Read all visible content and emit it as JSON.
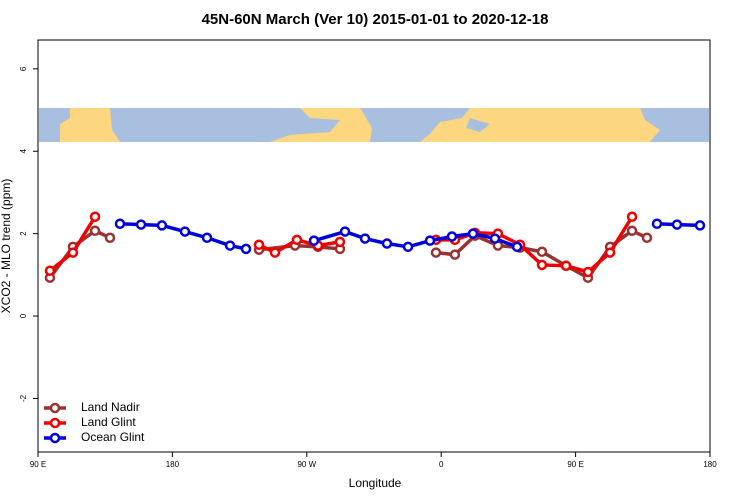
{
  "chart_data": {
    "type": "line",
    "title": "45N-60N March (Ver 10)   2015-01-01 to 2020-12-18",
    "x_label": "Longitude",
    "y_label": "XCO2 - MLO trend (ppm)",
    "xlim": [
      90,
      540
    ],
    "ylim": [
      -3.3,
      6.7
    ],
    "xticks": [
      {
        "value": 90,
        "label": "90 E"
      },
      180,
      {
        "value": 270,
        "label": "90 W"
      },
      {
        "value": 360,
        "label": "0"
      },
      {
        "value": 450,
        "label": "90 E"
      },
      {
        "value": 540,
        "label": "180"
      }
    ],
    "yticks": [
      -2,
      0,
      2,
      4,
      6
    ],
    "legend": "bottom-left",
    "series": [
      {
        "name": "Land Nadir",
        "color": "#993333",
        "x": [
          98.0,
          113.4,
          128.2,
          138.2,
          null,
          238.0,
          262.1,
          277.5,
          292.2,
          null,
          356.5,
          369.2,
          382.6,
          398.0,
          412.8,
          427.5,
          443.6,
          458.3,
          473.1,
          487.8,
          497.8
        ],
        "values": [
          0.93,
          1.68,
          2.07,
          1.9,
          null,
          1.61,
          1.71,
          1.68,
          1.63,
          null,
          1.54,
          1.49,
          1.95,
          1.71,
          1.66,
          1.56,
          1.22,
          0.93,
          1.68,
          2.07,
          1.9
        ]
      },
      {
        "name": "Land Glint",
        "color": "#ee0000",
        "x": [
          98.0,
          113.4,
          128.2,
          null,
          238.0,
          248.7,
          263.4,
          277.5,
          292.2,
          null,
          356.5,
          369.2,
          382.6,
          398.0,
          412.8,
          427.5,
          443.6,
          458.3,
          473.1,
          487.8
        ],
        "values": [
          1.1,
          1.54,
          2.41,
          null,
          1.73,
          1.54,
          1.85,
          1.71,
          1.8,
          null,
          1.85,
          1.85,
          2.02,
          2.0,
          1.73,
          1.24,
          1.22,
          1.07,
          1.54,
          2.41
        ]
      },
      {
        "name": "Ocean Glint",
        "color": "#0000dd",
        "x": [
          144.9,
          159.0,
          173.0,
          188.4,
          203.2,
          218.6,
          229.3,
          null,
          274.8,
          295.6,
          309.0,
          323.7,
          337.8,
          352.5,
          367.2,
          381.3,
          396.0,
          410.8,
          null,
          504.5,
          517.9,
          533.3
        ],
        "values": [
          2.24,
          2.22,
          2.2,
          2.05,
          1.9,
          1.71,
          1.63,
          null,
          1.83,
          2.05,
          1.88,
          1.76,
          1.68,
          1.83,
          1.93,
          2.0,
          1.88,
          1.68,
          null,
          2.24,
          2.22,
          2.2
        ]
      }
    ]
  }
}
